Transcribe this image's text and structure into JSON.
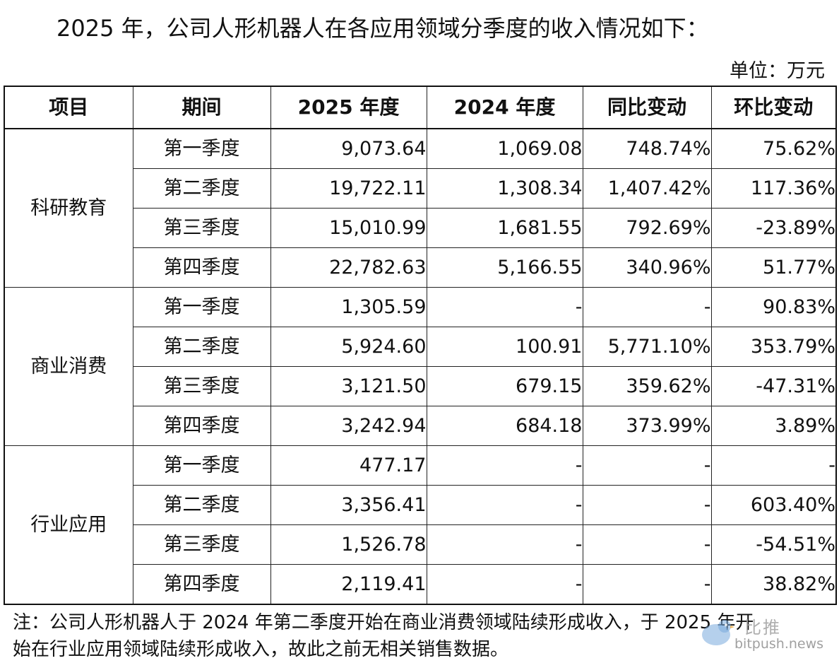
{
  "heading": "2025 年，公司人形机器人在各应用领域分季度的收入情况如下：",
  "unit": "单位：万元",
  "columns": [
    "项目",
    "期间",
    "2025 年度",
    "2024 年度",
    "同比变动",
    "环比变动"
  ],
  "groups": [
    {
      "name": "科研教育",
      "rows": [
        {
          "period": "第一季度",
          "y2025": "9,073.64",
          "y2024": "1,069.08",
          "yoy": "748.74%",
          "qoq": "75.62%"
        },
        {
          "period": "第二季度",
          "y2025": "19,722.11",
          "y2024": "1,308.34",
          "yoy": "1,407.42%",
          "qoq": "117.36%"
        },
        {
          "period": "第三季度",
          "y2025": "15,010.99",
          "y2024": "1,681.55",
          "yoy": "792.69%",
          "qoq": "-23.89%"
        },
        {
          "period": "第四季度",
          "y2025": "22,782.63",
          "y2024": "5,166.55",
          "yoy": "340.96%",
          "qoq": "51.77%"
        }
      ]
    },
    {
      "name": "商业消费",
      "rows": [
        {
          "period": "第一季度",
          "y2025": "1,305.59",
          "y2024": "-",
          "yoy": "-",
          "qoq": "90.83%"
        },
        {
          "period": "第二季度",
          "y2025": "5,924.60",
          "y2024": "100.91",
          "yoy": "5,771.10%",
          "qoq": "353.79%"
        },
        {
          "period": "第三季度",
          "y2025": "3,121.50",
          "y2024": "679.15",
          "yoy": "359.62%",
          "qoq": "-47.31%"
        },
        {
          "period": "第四季度",
          "y2025": "3,242.94",
          "y2024": "684.18",
          "yoy": "373.99%",
          "qoq": "3.89%"
        }
      ]
    },
    {
      "name": "行业应用",
      "rows": [
        {
          "period": "第一季度",
          "y2025": "477.17",
          "y2024": "-",
          "yoy": "-",
          "qoq": "-"
        },
        {
          "period": "第二季度",
          "y2025": "3,356.41",
          "y2024": "-",
          "yoy": "-",
          "qoq": "603.40%"
        },
        {
          "period": "第三季度",
          "y2025": "1,526.78",
          "y2024": "-",
          "yoy": "-",
          "qoq": "-54.51%"
        },
        {
          "period": "第四季度",
          "y2025": "2,119.41",
          "y2024": "-",
          "yoy": "-",
          "qoq": "38.82%"
        }
      ]
    }
  ],
  "footnote": {
    "line1": "注：公司人形机器人于 2024 年第二季度开始在商业消费领域陆续形成收入，于 2025 年开",
    "line2": "始在行业应用领域陆续形成收入，故此之前无相关销售数据。"
  },
  "watermark": {
    "brand": "比推",
    "url": "bitpush.news",
    "icon": "bird-logo-icon"
  }
}
